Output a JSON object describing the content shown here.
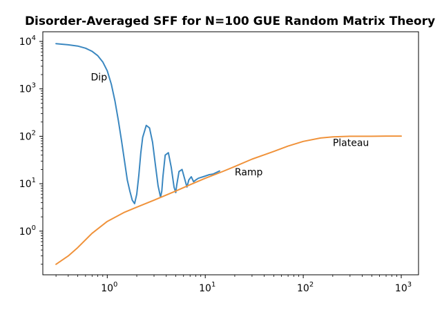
{
  "chart_data": {
    "type": "line",
    "title": "Disorder-Averaged SFF for N=100 GUE Random Matrix Theory",
    "xlabel": "",
    "ylabel": "",
    "xscale": "log",
    "yscale": "log",
    "xlim": [
      0.22,
      1500
    ],
    "ylim": [
      0.12,
      16000
    ],
    "grid": false,
    "x_ticks": [
      {
        "base": "10",
        "exp": "0",
        "value": 1
      },
      {
        "base": "10",
        "exp": "1",
        "value": 10
      },
      {
        "base": "10",
        "exp": "2",
        "value": 100
      },
      {
        "base": "10",
        "exp": "3",
        "value": 1000
      }
    ],
    "y_ticks": [
      {
        "base": "10",
        "exp": "0",
        "value": 1
      },
      {
        "base": "10",
        "exp": "1",
        "value": 10
      },
      {
        "base": "10",
        "exp": "2",
        "value": 100
      },
      {
        "base": "10",
        "exp": "3",
        "value": 1000
      },
      {
        "base": "10",
        "exp": "4",
        "value": 10000
      }
    ],
    "series": [
      {
        "color": "#3a87c0",
        "x": [
          0.3,
          0.4,
          0.5,
          0.6,
          0.7,
          0.8,
          0.9,
          1.0,
          1.1,
          1.2,
          1.3,
          1.4,
          1.5,
          1.6,
          1.7,
          1.8,
          1.9,
          2.0,
          2.1,
          2.2,
          2.3,
          2.5,
          2.7,
          2.9,
          3.1,
          3.3,
          3.5,
          3.6,
          3.7,
          3.9,
          4.2,
          4.5,
          4.8,
          5.0,
          5.1,
          5.4,
          5.8,
          6.2,
          6.5,
          6.8,
          7.2,
          7.6,
          8.0,
          8.5,
          9.0,
          9.5,
          10.0,
          11.0,
          12.0,
          14.0
        ],
        "y": [
          9000,
          8500,
          8000,
          7200,
          6200,
          5000,
          3700,
          2400,
          1250,
          550,
          210,
          80,
          30,
          12,
          7,
          4.5,
          3.8,
          6,
          15,
          45,
          95,
          170,
          150,
          75,
          25,
          9,
          5.2,
          7,
          14,
          40,
          45,
          22,
          8.5,
          6.5,
          9,
          18,
          20,
          12,
          8.5,
          12,
          14,
          11,
          12,
          13,
          13.5,
          14,
          14.5,
          15.5,
          16,
          18.5
        ]
      },
      {
        "color": "#f0923a",
        "x": [
          0.3,
          0.4,
          0.5,
          0.7,
          1.0,
          1.5,
          2.0,
          3.0,
          5.0,
          7.0,
          10.0,
          15.0,
          20.0,
          30.0,
          50.0,
          70.0,
          100.0,
          150.0,
          200.0,
          300.0,
          500.0,
          700.0,
          1000.0
        ],
        "y": [
          0.2,
          0.3,
          0.45,
          0.9,
          1.6,
          2.5,
          3.2,
          4.5,
          7,
          9.5,
          13,
          18,
          23,
          33,
          48,
          62,
          78,
          92,
          97,
          100,
          100,
          101,
          101
        ]
      }
    ],
    "annotations": [
      {
        "text": "Dip",
        "x": 0.68,
        "y": 1500
      },
      {
        "text": "Ramp",
        "x": 20,
        "y": 15
      },
      {
        "text": "Plateau",
        "x": 200,
        "y": 62
      }
    ]
  }
}
